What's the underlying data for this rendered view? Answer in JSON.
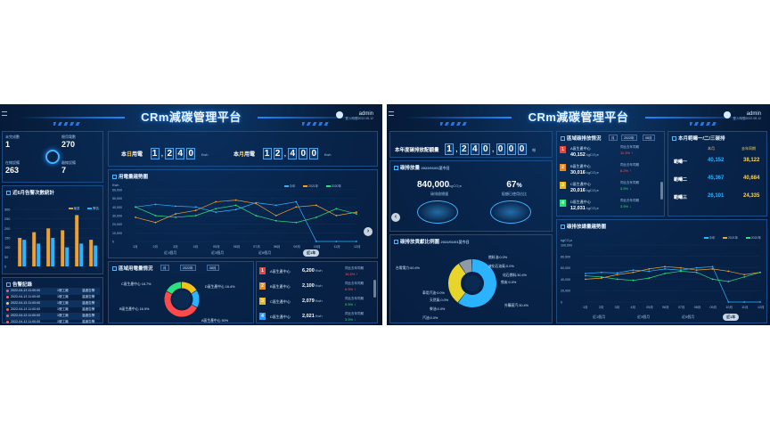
{
  "screenA": {
    "title": "CRm減碳管理平台",
    "user": {
      "name": "admin",
      "time": "登入時間2022.08.12"
    },
    "stats": [
      {
        "label": "未完成數",
        "value": "1"
      },
      {
        "label": "總用電數",
        "value": "270"
      },
      {
        "label": "在線設備",
        "value": "263"
      },
      {
        "label": "離線設備",
        "value": "7"
      }
    ],
    "alarm_chart": {
      "title": "近6月告警次數統計",
      "legend": [
        "嚴重",
        "警告"
      ],
      "y_ticks": [
        "300",
        "250",
        "200",
        "150",
        "100",
        "50",
        "0"
      ],
      "pairs": [
        [
          150,
          140
        ],
        [
          180,
          120
        ],
        [
          200,
          150
        ],
        [
          190,
          100
        ],
        [
          270,
          120
        ],
        [
          140,
          110
        ]
      ]
    },
    "alarm_log": {
      "title": "告警記錄",
      "rows": [
        {
          "time": "2022-04-13 11:00:00",
          "place": "1號工廠",
          "type": "溫度告警",
          "color": "#ff5a5a"
        },
        {
          "time": "2022-04-13 11:00:00",
          "place": "1號工廠",
          "type": "溫度告警",
          "color": "#ff5a5a"
        },
        {
          "time": "2022-04-13 11:00:00",
          "place": "1號工廠",
          "type": "溫度告警",
          "color": "#ffd24a"
        },
        {
          "time": "2022-04-13 11:00:00",
          "place": "1號工廠",
          "type": "溫度告警",
          "color": "#ff5a5a"
        },
        {
          "time": "2022-04-13 11:00:00",
          "place": "1號工廠",
          "type": "溫度告警",
          "color": "#ff5a5a"
        },
        {
          "time": "2022-04-13 11:00:00",
          "place": "1號工廠",
          "type": "溫度告警",
          "color": "#ff5a5a"
        }
      ]
    },
    "today": {
      "label_pre": "本",
      "label_hl": "日",
      "label_post": "用電",
      "digits": [
        "1",
        "2",
        "4",
        "0"
      ],
      "unit": "Kwh"
    },
    "month": {
      "label_pre": "本",
      "label_hl": "月",
      "label_post": "用電",
      "digits": [
        "1",
        "2",
        "4",
        "0",
        "0"
      ],
      "unit": "Kwh"
    },
    "trend": {
      "title": "用電量趨勢圖",
      "unit": "Kwh",
      "legend": [
        "今年",
        "2021年",
        "2020年"
      ],
      "y_ticks": [
        "60,000",
        "50,000",
        "40,000",
        "30,000",
        "20,000",
        "10,000",
        "0"
      ],
      "x_ticks": [
        "1月",
        "2月",
        "3月",
        "4月",
        "05月",
        "06月",
        "07月",
        "08月",
        "09月",
        "10月",
        "11月",
        "12月"
      ],
      "ranges": [
        "近1個月",
        "近3個月",
        "近6個月",
        "近1年"
      ]
    },
    "area": {
      "title": "區域用電量情況",
      "selects": [
        "月",
        "2022年",
        "08月"
      ],
      "slices": [
        {
          "label": "C區生產中心 16.7%",
          "value": 16.7,
          "color": "#f2c21b"
        },
        {
          "label": "D區生產中心 16.4%",
          "value": 16.4,
          "color": "#2bb3ff"
        },
        {
          "label": "A區生產中心 50%",
          "value": 50,
          "color": "#ff4a4a"
        },
        {
          "label": "B區生產中心 16.9%",
          "value": 16.9,
          "color": "#2de07e"
        }
      ]
    },
    "ranking": [
      {
        "n": "1",
        "name": "A區生產中心",
        "value": "6,200",
        "unit": "Kwh",
        "cmp": "同比去年同期",
        "pct": "15.5%",
        "dir": "up",
        "color": "#e8453c"
      },
      {
        "n": "2",
        "name": "B區生產中心",
        "value": "2,100",
        "unit": "Kwh",
        "cmp": "同比去年同期",
        "pct": "6.5%",
        "dir": "up",
        "color": "#f08a1c"
      },
      {
        "n": "3",
        "name": "C區生產中心",
        "value": "2,079",
        "unit": "Kwh",
        "cmp": "同比去年同期",
        "pct": "5.5%",
        "dir": "down",
        "color": "#e8b91c"
      },
      {
        "n": "4",
        "name": "D區生產中心",
        "value": "2,021",
        "unit": "Kwh",
        "cmp": "同比去年同期",
        "pct": "3.5%",
        "dir": "down",
        "color": "#2a9bff"
      }
    ]
  },
  "screenB": {
    "title": "CRm減碳管理平台",
    "user": {
      "name": "admin",
      "time": "登入時間2022.08.12"
    },
    "quota": {
      "label": "本年度碳排放配額量",
      "digits": [
        "1",
        "2",
        "4",
        "0",
        "0",
        "0",
        "0"
      ],
      "unit": "噸"
    },
    "emission": {
      "title": "碳排放量",
      "date": "2022/01/01至今日",
      "total_value": "840,000",
      "total_unit": "kgCO₂e",
      "total_label": "碳排放總量",
      "ratio_value": "67",
      "ratio_unit": "%",
      "ratio_label": "配額已使用佔比"
    },
    "source": {
      "title": "碳排放貢獻比例圖",
      "date": "2022/01/01至今日",
      "labels": [
        "台電電力:60.4%",
        "燃料油:0.0%",
        "液化石油氣:0.0%",
        "汽油:0.0%",
        "天然氣:0.0%",
        "柴油:0.0%",
        "車用汽油:0.0%",
        "外購蒸汽:30.4%",
        "焦炭:0.0%",
        "化石燃料:30.4%"
      ],
      "segments": [
        {
          "value": 60.4,
          "color": "#2bb3ff"
        },
        {
          "value": 30.4,
          "color": "#e8d52c"
        },
        {
          "value": 9.2,
          "color": "#8f9aa8"
        }
      ]
    },
    "ranking_title": "區域碳排放情況",
    "selects": [
      "月",
      "2022年",
      "08月"
    ],
    "ranking": [
      {
        "n": "1",
        "name": "A區生產中心",
        "value": "40,152",
        "unit": "kgCO₂e",
        "cmp": "同比去年同期",
        "pct": "11.3%",
        "dir": "up",
        "color": "#e8453c"
      },
      {
        "n": "2",
        "name": "B區生產中心",
        "value": "30,016",
        "unit": "kgCO₂e",
        "cmp": "同比去年同期",
        "pct": "6.2%",
        "dir": "up",
        "color": "#f08a1c"
      },
      {
        "n": "3",
        "name": "C區生產中心",
        "value": "20,016",
        "unit": "kgCO₂e",
        "cmp": "同比去年同期",
        "pct": "3.5%",
        "dir": "down",
        "color": "#e8b91c"
      },
      {
        "n": "4",
        "name": "D區生產中心",
        "value": "12,031",
        "unit": "kgCO₂e",
        "cmp": "同比去年同期",
        "pct": "3.5%",
        "dir": "down",
        "color": "#2de07e"
      }
    ],
    "scope": {
      "title": "本月範疇一/二/三碳排",
      "col1": "本月",
      "col2": "去年同期",
      "rows": [
        {
          "name": "範疇一",
          "now": "40,152",
          "last": "38,122"
        },
        {
          "name": "範疇二",
          "now": "45,367",
          "last": "40,684"
        },
        {
          "name": "範疇三",
          "now": "26,101",
          "last": "24,335"
        }
      ]
    },
    "trend": {
      "title": "碳排放總量趨勢圖",
      "unit": "kgCO₂e",
      "legend": [
        "今年",
        "2021年",
        "2020年"
      ],
      "y_ticks": [
        "100,000",
        "80,000",
        "60,000",
        "40,000",
        "20,000",
        "0"
      ],
      "x_ticks": [
        "1月",
        "2月",
        "3月",
        "4月",
        "05月",
        "06月",
        "07月",
        "08月",
        "09月",
        "10月",
        "11月",
        "12月"
      ],
      "ranges": [
        "近1個月",
        "近3個月",
        "近6個月",
        "近1年"
      ]
    }
  },
  "colors": {
    "cyan": "#2bb3ff",
    "orange": "#f0a030",
    "green": "#2de07e"
  }
}
